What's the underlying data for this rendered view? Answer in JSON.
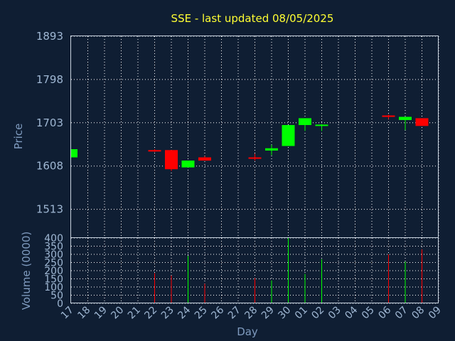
{
  "chart_data": {
    "type": "candlestick",
    "title": "SSE - last updated 08/05/2025",
    "ylabel": "Price",
    "volume_label": "Volume (0000)",
    "xlabel": "Day",
    "colors": {
      "background": "#0f1e33",
      "up": "#00ff00",
      "down": "#ff0000",
      "title": "#ffff33",
      "ticks": "#9fb7d3"
    },
    "grid": true,
    "price_ylim": [
      1450,
      1893
    ],
    "price_ticks": [
      "1893",
      "1798",
      "1703",
      "1608",
      "1513"
    ],
    "volume_ylim": [
      0,
      400
    ],
    "volume_ticks": [
      "400",
      "350",
      "300",
      "250",
      "200",
      "150",
      "100",
      "50",
      "0"
    ],
    "days": [
      "17",
      "18",
      "19",
      "20",
      "21",
      "22",
      "23",
      "24",
      "25",
      "26",
      "27",
      "28",
      "29",
      "30",
      "01",
      "02",
      "03",
      "04",
      "05",
      "06",
      "07",
      "08",
      "09"
    ],
    "candles": [
      {
        "day": "17",
        "open": 1627,
        "close": 1645,
        "high": 1645,
        "low": 1627,
        "volume": 0
      },
      {
        "day": "22",
        "open": 1643,
        "close": 1640,
        "high": 1645,
        "low": 1639,
        "volume": 185
      },
      {
        "day": "23",
        "open": 1643,
        "close": 1601,
        "high": 1643,
        "low": 1597,
        "volume": 170
      },
      {
        "day": "24",
        "open": 1605,
        "close": 1620,
        "high": 1620,
        "low": 1605,
        "volume": 290
      },
      {
        "day": "25",
        "open": 1627,
        "close": 1620,
        "high": 1630,
        "low": 1620,
        "volume": 120
      },
      {
        "day": "28",
        "open": 1627,
        "close": 1625,
        "high": 1635,
        "low": 1620,
        "volume": 155
      },
      {
        "day": "29",
        "open": 1642,
        "close": 1647,
        "high": 1655,
        "low": 1632,
        "volume": 140
      },
      {
        "day": "30",
        "open": 1652,
        "close": 1698,
        "high": 1698,
        "low": 1652,
        "volume": 400
      },
      {
        "day": "01",
        "open": 1698,
        "close": 1713,
        "high": 1713,
        "low": 1685,
        "volume": 180
      },
      {
        "day": "02",
        "open": 1697,
        "close": 1699,
        "high": 1700,
        "low": 1685,
        "volume": 270
      },
      {
        "day": "06",
        "open": 1719,
        "close": 1716,
        "high": 1721,
        "low": 1711,
        "volume": 300
      },
      {
        "day": "07",
        "open": 1709,
        "close": 1716,
        "high": 1716,
        "low": 1687,
        "volume": 255
      },
      {
        "day": "08",
        "open": 1713,
        "close": 1696,
        "high": 1713,
        "low": 1696,
        "volume": 330
      }
    ]
  }
}
